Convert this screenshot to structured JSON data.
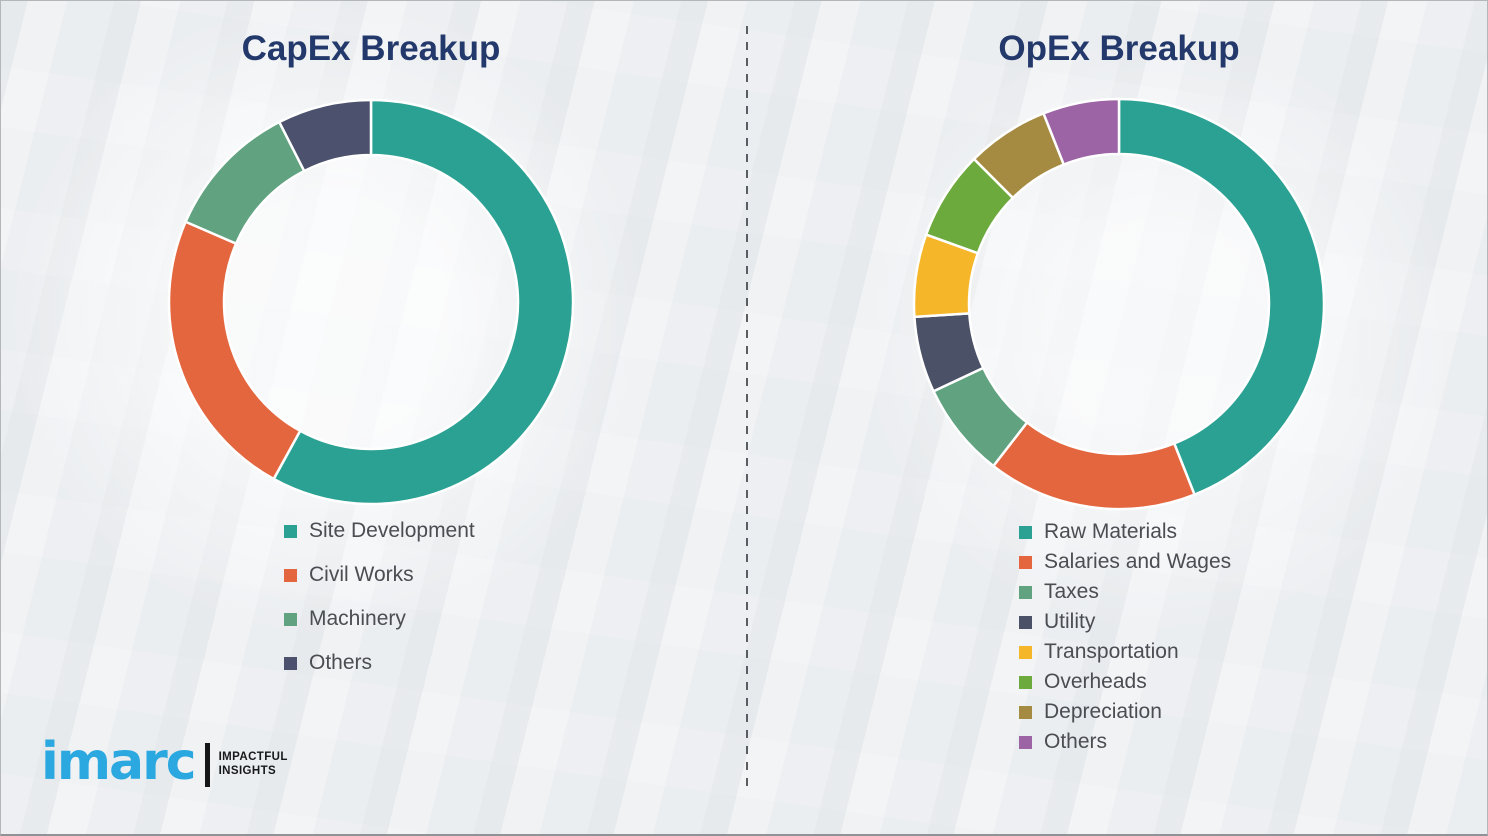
{
  "theme": {
    "background_color": "#f2f3f5",
    "title_color": "#24396b",
    "legend_text_color": "#4b4d52",
    "divider_color": "#595e63",
    "segment_separator_color": "#ffffff"
  },
  "logo": {
    "brand": "imarc",
    "brand_color": "#2ba8e0",
    "tagline_line1": "IMPACTFUL",
    "tagline_line2": "INSIGHTS"
  },
  "chart_data": [
    {
      "type": "pie",
      "subtype": "donut",
      "title": "CapEx Breakup",
      "categories": [
        "Site Development",
        "Civil Works",
        "Machinery",
        "Others"
      ],
      "values": [
        58,
        23.5,
        11,
        7.5
      ],
      "unit": "percent",
      "colors": [
        "#2aa192",
        "#e4663f",
        "#61a380",
        "#4c526d"
      ],
      "start_angle_deg": 0,
      "direction": "clockwise",
      "legend_position": "below-left"
    },
    {
      "type": "pie",
      "subtype": "donut",
      "title": "OpEx Breakup",
      "categories": [
        "Raw Materials",
        "Salaries and Wages",
        "Taxes",
        "Utility",
        "Transportation",
        "Overheads",
        "Depreciation",
        "Others"
      ],
      "values": [
        44,
        16.5,
        7.5,
        6,
        6.5,
        7,
        6.5,
        6
      ],
      "unit": "percent",
      "colors": [
        "#2aa192",
        "#e4663f",
        "#61a380",
        "#4b5166",
        "#f6b629",
        "#6caa3e",
        "#a58a42",
        "#9c63a5"
      ],
      "start_angle_deg": 0,
      "direction": "clockwise",
      "legend_position": "below-left"
    }
  ]
}
